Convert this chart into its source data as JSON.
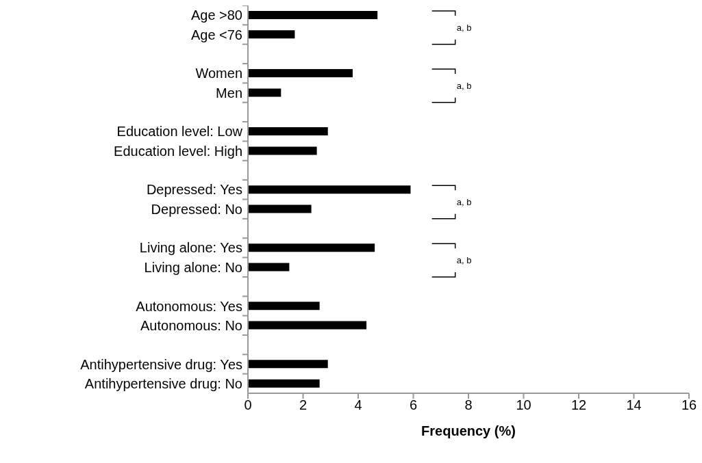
{
  "chart_data": {
    "type": "bar",
    "orientation": "horizontal",
    "xlabel": "Frequency (%)",
    "categories": [
      "Age >80",
      "Age <76",
      null,
      "Women",
      "Men",
      null,
      "Education level: Low",
      "Education level: High",
      null,
      "Depressed: Yes",
      "Depressed: No",
      null,
      "Living alone: Yes",
      "Living alone: No",
      null,
      "Autonomous:  Yes",
      "Autonomous:  No",
      null,
      "Antihypertensive drug: Yes",
      "Antihypertensive drug: No"
    ],
    "values": [
      4.7,
      1.7,
      null,
      3.8,
      1.2,
      null,
      2.9,
      2.5,
      null,
      5.9,
      2.3,
      null,
      4.6,
      1.5,
      null,
      2.6,
      4.3,
      null,
      2.9,
      2.6
    ],
    "color": "#000000",
    "xlim": [
      0,
      16
    ],
    "xticks": [
      0,
      2,
      4,
      6,
      8,
      10,
      12,
      14,
      16
    ],
    "grid": false,
    "legend": false,
    "annotations": [
      "a, b",
      "a, b",
      "a, b",
      "a, b"
    ]
  }
}
